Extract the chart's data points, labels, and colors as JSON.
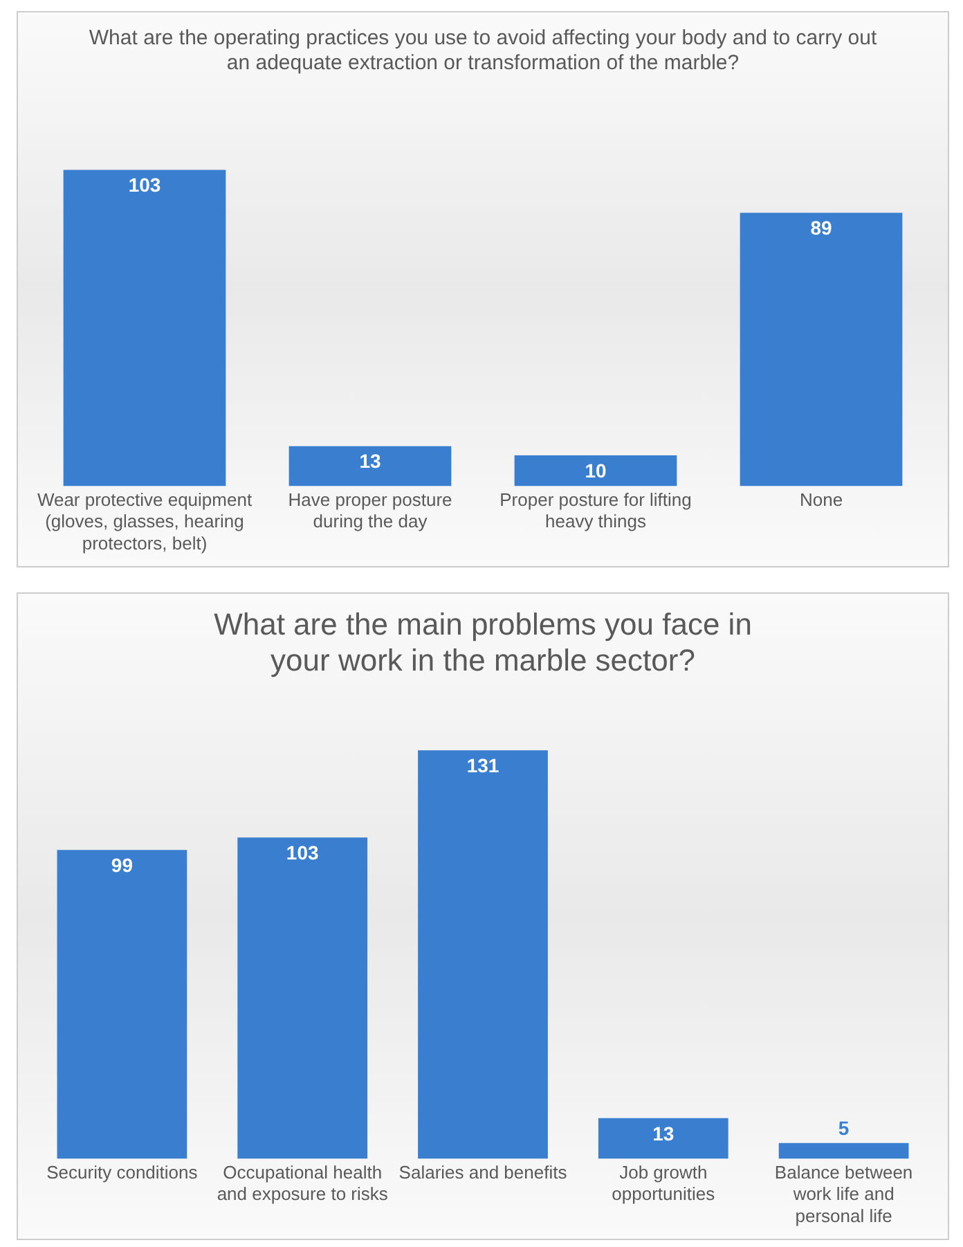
{
  "chart_data": [
    {
      "type": "bar",
      "title": "What are the operating practices you use to avoid affecting your body and to carry out an adequate extraction or transformation of the marble?",
      "categories": [
        "Wear protective equipment (gloves, glasses, hearing protectors, belt)",
        "Have proper posture during the day",
        "Proper posture for lifting heavy things",
        "None"
      ],
      "values": [
        103,
        13,
        10,
        89
      ],
      "color": "#3a7fcf",
      "data_labels": true,
      "grid": false,
      "legend": false,
      "tick_labels": "x"
    },
    {
      "type": "bar",
      "title": "What are the main problems you face in your work in the marble sector?",
      "categories": [
        "Security conditions",
        "Occupational health and exposure to risks",
        "Salaries and benefits",
        "Job growth opportunities",
        "Balance between work life and personal life"
      ],
      "values": [
        99,
        103,
        131,
        13,
        5
      ],
      "color": "#3a7fcf",
      "data_labels": true,
      "grid": false,
      "legend": false,
      "tick_labels": "x"
    }
  ]
}
